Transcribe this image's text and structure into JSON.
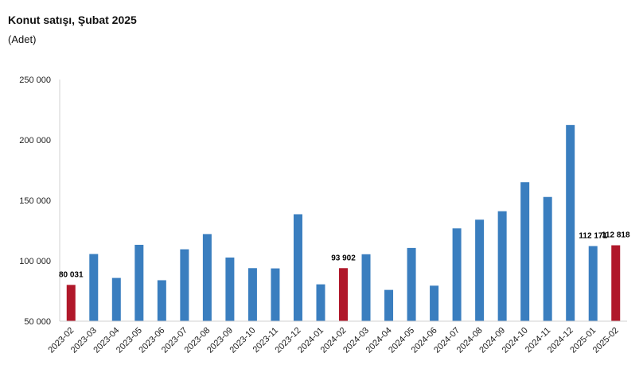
{
  "title": "Konut satışı, Şubat 2025",
  "subtitle": "(Adet)",
  "chart_data": {
    "type": "bar",
    "categories": [
      "2023-02",
      "2023-03",
      "2023-04",
      "2023-05",
      "2023-06",
      "2023-07",
      "2023-08",
      "2023-09",
      "2023-10",
      "2023-11",
      "2023-12",
      "2024-01",
      "2024-02",
      "2024-03",
      "2024-04",
      "2024-05",
      "2024-06",
      "2024-07",
      "2024-08",
      "2024-09",
      "2024-10",
      "2024-11",
      "2024-12",
      "2025-01",
      "2025-02"
    ],
    "values": [
      80031,
      105600,
      85800,
      113200,
      83900,
      109500,
      122100,
      102700,
      93900,
      93700,
      138500,
      80500,
      93902,
      105400,
      75900,
      110600,
      79400,
      126800,
      134000,
      141000,
      165000,
      152800,
      212400,
      112171,
      112818
    ],
    "highlight": [
      0,
      12,
      24
    ],
    "data_labels": [
      {
        "index": 0,
        "text": "80 031"
      },
      {
        "index": 12,
        "text": "93 902"
      },
      {
        "index": 23,
        "text": "112 171"
      },
      {
        "index": 24,
        "text": "112 818"
      }
    ],
    "yticks": [
      "50 000",
      "100 000",
      "150 000",
      "200 000",
      "250 000"
    ],
    "ytick_values": [
      50000,
      100000,
      150000,
      200000,
      250000
    ],
    "ylim": [
      50000,
      250000
    ],
    "colors": {
      "default": "#3a7ebf",
      "highlight": "#b0182a"
    },
    "grid": false,
    "legend": "none"
  }
}
